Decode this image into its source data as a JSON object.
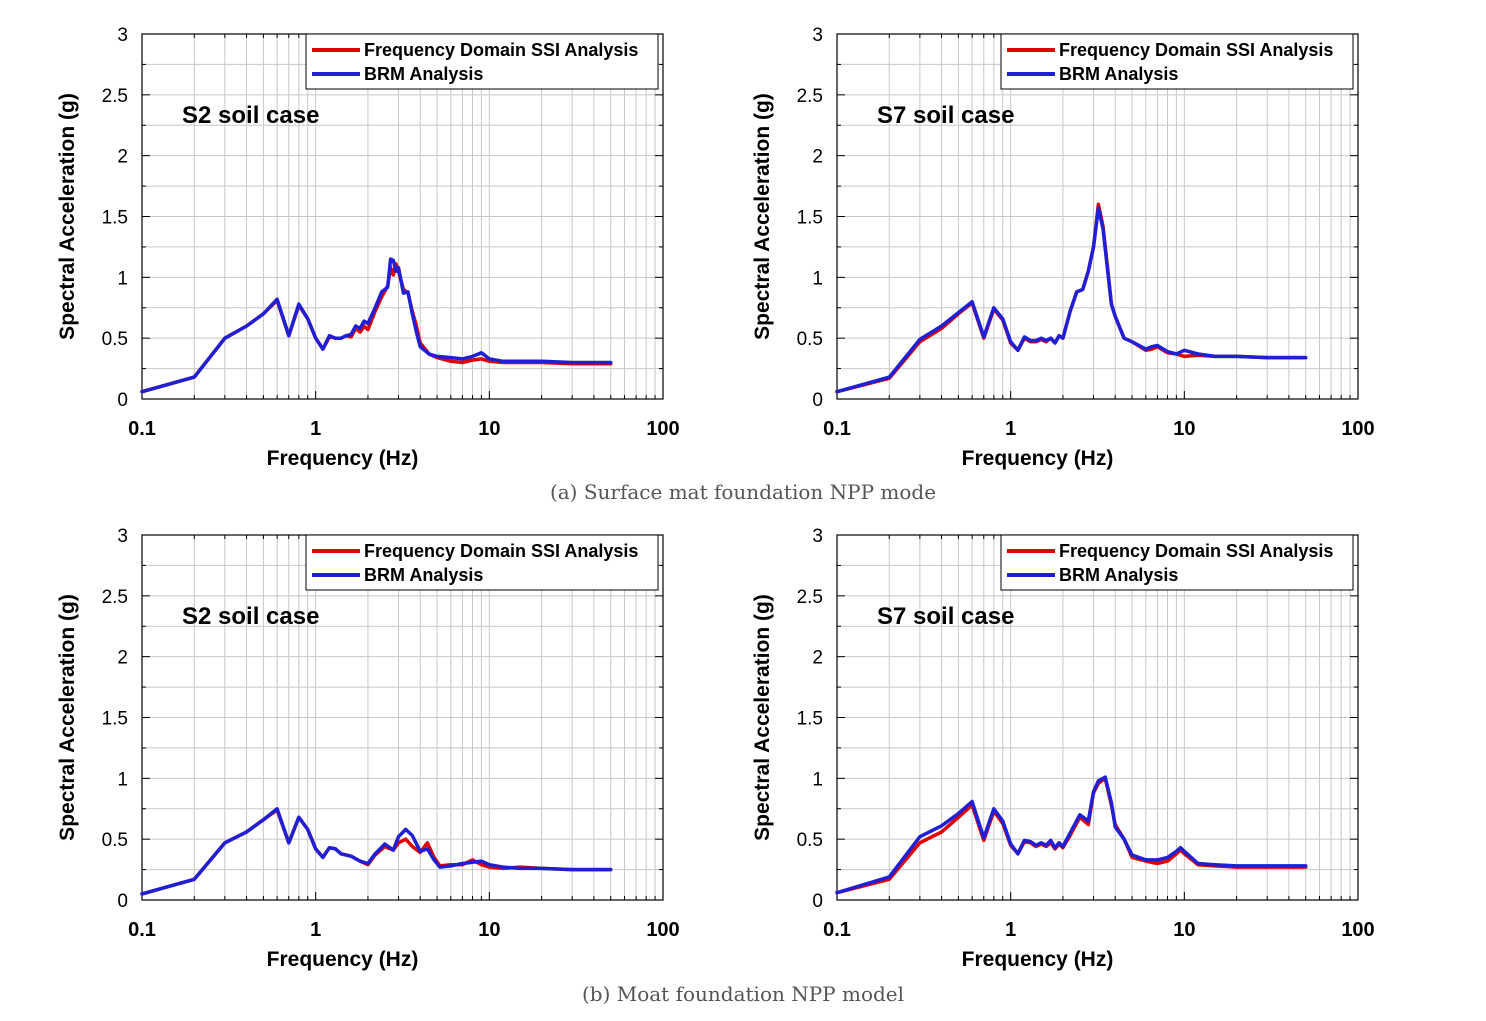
{
  "figure": {
    "caption_a": "(a) Surface mat foundation NPP mode",
    "caption_b": "(b) Moat foundation NPP model"
  },
  "colors": {
    "fd_series": "#e00000",
    "brm_series": "#1f1fd6",
    "grid": "#c8c8c8",
    "axis": "#000000"
  },
  "chart_data": [
    {
      "id": "a-s2",
      "type": "line",
      "case_label": "S2 soil case",
      "xlabel": "Frequency (Hz)",
      "ylabel": "Spectral Acceleration (g)",
      "xscale": "log",
      "xlim": [
        0.1,
        100
      ],
      "ylim": [
        0,
        3
      ],
      "xticks": [
        "0.1",
        "1",
        "10",
        "100"
      ],
      "yticks": [
        "0",
        "0.5",
        "1",
        "1.5",
        "2",
        "2.5",
        "3"
      ],
      "legend": [
        "Frequency Domain SSI Analysis",
        "BRM Analysis"
      ],
      "legend_position": "top-right",
      "series": [
        {
          "name": "Frequency Domain SSI Analysis",
          "x": [
            0.1,
            0.2,
            0.3,
            0.4,
            0.5,
            0.6,
            0.7,
            0.8,
            0.9,
            1.0,
            1.1,
            1.2,
            1.3,
            1.4,
            1.5,
            1.6,
            1.7,
            1.8,
            1.9,
            2.0,
            2.2,
            2.4,
            2.6,
            2.7,
            2.8,
            2.9,
            3.0,
            3.2,
            3.4,
            3.6,
            3.8,
            4.0,
            4.5,
            5,
            6,
            7,
            8,
            9,
            10,
            12,
            15,
            20,
            30,
            50
          ],
          "y": [
            0.06,
            0.18,
            0.5,
            0.6,
            0.7,
            0.81,
            0.52,
            0.77,
            0.66,
            0.5,
            0.41,
            0.51,
            0.5,
            0.5,
            0.52,
            0.51,
            0.58,
            0.55,
            0.6,
            0.57,
            0.72,
            0.84,
            0.93,
            1.08,
            1.02,
            1.11,
            1.05,
            0.9,
            0.87,
            0.72,
            0.6,
            0.46,
            0.37,
            0.34,
            0.31,
            0.3,
            0.32,
            0.33,
            0.31,
            0.3,
            0.3,
            0.3,
            0.29,
            0.29
          ]
        },
        {
          "name": "BRM Analysis",
          "x": [
            0.1,
            0.2,
            0.3,
            0.4,
            0.5,
            0.6,
            0.7,
            0.8,
            0.9,
            1.0,
            1.1,
            1.2,
            1.3,
            1.4,
            1.5,
            1.6,
            1.7,
            1.8,
            1.9,
            2.0,
            2.2,
            2.4,
            2.6,
            2.7,
            2.8,
            2.9,
            3.0,
            3.2,
            3.4,
            3.6,
            3.8,
            4.0,
            4.5,
            5,
            6,
            7,
            8,
            9,
            10,
            12,
            15,
            20,
            30,
            50
          ],
          "y": [
            0.06,
            0.18,
            0.5,
            0.6,
            0.7,
            0.82,
            0.52,
            0.78,
            0.66,
            0.5,
            0.41,
            0.52,
            0.5,
            0.5,
            0.52,
            0.53,
            0.6,
            0.58,
            0.64,
            0.62,
            0.75,
            0.88,
            0.92,
            1.15,
            1.14,
            1.05,
            1.08,
            0.87,
            0.88,
            0.7,
            0.55,
            0.43,
            0.37,
            0.35,
            0.34,
            0.33,
            0.35,
            0.38,
            0.33,
            0.31,
            0.31,
            0.31,
            0.3,
            0.3
          ]
        }
      ]
    },
    {
      "id": "a-s7",
      "type": "line",
      "case_label": "S7 soil case",
      "xlabel": "Frequency (Hz)",
      "ylabel": "Spectral Acceleration (g)",
      "xscale": "log",
      "xlim": [
        0.1,
        100
      ],
      "ylim": [
        0,
        3
      ],
      "xticks": [
        "0.1",
        "1",
        "10",
        "100"
      ],
      "yticks": [
        "0",
        "0.5",
        "1",
        "1.5",
        "2",
        "2.5",
        "3"
      ],
      "legend": [
        "Frequency Domain SSI Analysis",
        "BRM Analysis"
      ],
      "legend_position": "top-right",
      "series": [
        {
          "name": "Frequency Domain SSI Analysis",
          "x": [
            0.1,
            0.2,
            0.3,
            0.4,
            0.5,
            0.6,
            0.7,
            0.8,
            0.9,
            1.0,
            1.1,
            1.2,
            1.3,
            1.4,
            1.5,
            1.6,
            1.7,
            1.8,
            1.9,
            2.0,
            2.2,
            2.4,
            2.6,
            2.8,
            3.0,
            3.2,
            3.4,
            3.6,
            3.8,
            4.0,
            4.5,
            5,
            6,
            6.5,
            7,
            8,
            9,
            10,
            12,
            15,
            20,
            30,
            50
          ],
          "y": [
            0.06,
            0.17,
            0.47,
            0.58,
            0.7,
            0.79,
            0.5,
            0.74,
            0.65,
            0.46,
            0.4,
            0.5,
            0.47,
            0.47,
            0.49,
            0.47,
            0.5,
            0.46,
            0.52,
            0.5,
            0.72,
            0.88,
            0.9,
            1.05,
            1.25,
            1.6,
            1.42,
            1.1,
            0.78,
            0.68,
            0.5,
            0.47,
            0.4,
            0.41,
            0.43,
            0.38,
            0.37,
            0.35,
            0.36,
            0.35,
            0.35,
            0.34,
            0.34
          ]
        },
        {
          "name": "BRM Analysis",
          "x": [
            0.1,
            0.2,
            0.3,
            0.4,
            0.5,
            0.6,
            0.7,
            0.8,
            0.9,
            1.0,
            1.1,
            1.2,
            1.3,
            1.4,
            1.5,
            1.6,
            1.7,
            1.8,
            1.9,
            2.0,
            2.2,
            2.4,
            2.6,
            2.8,
            3.0,
            3.2,
            3.4,
            3.6,
            3.8,
            4.0,
            4.5,
            5,
            6,
            6.5,
            7,
            8,
            9,
            10,
            12,
            15,
            20,
            30,
            50
          ],
          "y": [
            0.06,
            0.18,
            0.49,
            0.6,
            0.71,
            0.8,
            0.51,
            0.75,
            0.66,
            0.47,
            0.4,
            0.51,
            0.48,
            0.48,
            0.5,
            0.48,
            0.5,
            0.46,
            0.52,
            0.5,
            0.72,
            0.88,
            0.9,
            1.05,
            1.25,
            1.57,
            1.4,
            1.08,
            0.78,
            0.68,
            0.5,
            0.47,
            0.41,
            0.43,
            0.44,
            0.39,
            0.37,
            0.4,
            0.37,
            0.35,
            0.35,
            0.34,
            0.34
          ]
        }
      ]
    },
    {
      "id": "b-s2",
      "type": "line",
      "case_label": "S2 soil case",
      "xlabel": "Frequency (Hz)",
      "ylabel": "Spectral Acceleration (g)",
      "xscale": "log",
      "xlim": [
        0.1,
        100
      ],
      "ylim": [
        0,
        3
      ],
      "xticks": [
        "0.1",
        "1",
        "10",
        "100"
      ],
      "yticks": [
        "0",
        "0.5",
        "1",
        "1.5",
        "2",
        "2.5",
        "3"
      ],
      "legend": [
        "Frequency Domain SSI Analysis",
        "BRM Analysis"
      ],
      "legend_position": "top-right",
      "series": [
        {
          "name": "Frequency Domain SSI Analysis",
          "x": [
            0.1,
            0.2,
            0.3,
            0.4,
            0.5,
            0.6,
            0.7,
            0.8,
            0.9,
            1.0,
            1.1,
            1.2,
            1.3,
            1.4,
            1.6,
            1.8,
            2.0,
            2.2,
            2.5,
            2.8,
            3.0,
            3.3,
            3.6,
            4.0,
            4.4,
            4.8,
            5.2,
            6,
            7,
            8,
            9,
            10,
            12,
            15,
            20,
            30,
            50
          ],
          "y": [
            0.05,
            0.17,
            0.47,
            0.56,
            0.66,
            0.74,
            0.47,
            0.68,
            0.58,
            0.42,
            0.35,
            0.43,
            0.42,
            0.38,
            0.36,
            0.32,
            0.29,
            0.37,
            0.44,
            0.41,
            0.47,
            0.5,
            0.44,
            0.39,
            0.47,
            0.35,
            0.28,
            0.29,
            0.29,
            0.33,
            0.29,
            0.27,
            0.26,
            0.27,
            0.26,
            0.25,
            0.25
          ]
        },
        {
          "name": "BRM Analysis",
          "x": [
            0.1,
            0.2,
            0.3,
            0.4,
            0.5,
            0.6,
            0.7,
            0.8,
            0.9,
            1.0,
            1.1,
            1.2,
            1.3,
            1.4,
            1.6,
            1.8,
            2.0,
            2.2,
            2.5,
            2.8,
            3.0,
            3.3,
            3.6,
            4.0,
            4.4,
            4.8,
            5.2,
            6,
            7,
            8,
            9,
            10,
            12,
            15,
            20,
            30,
            50
          ],
          "y": [
            0.05,
            0.17,
            0.47,
            0.56,
            0.66,
            0.75,
            0.47,
            0.68,
            0.58,
            0.42,
            0.35,
            0.43,
            0.42,
            0.38,
            0.36,
            0.32,
            0.3,
            0.38,
            0.46,
            0.41,
            0.52,
            0.58,
            0.53,
            0.4,
            0.42,
            0.33,
            0.27,
            0.28,
            0.3,
            0.31,
            0.32,
            0.29,
            0.27,
            0.26,
            0.26,
            0.25,
            0.25
          ]
        }
      ]
    },
    {
      "id": "b-s7",
      "type": "line",
      "case_label": "S7 soil case",
      "xlabel": "Frequency (Hz)",
      "ylabel": "Spectral Acceleration (g)",
      "xscale": "log",
      "xlim": [
        0.1,
        100
      ],
      "ylim": [
        0,
        3
      ],
      "xticks": [
        "0.1",
        "1",
        "10",
        "100"
      ],
      "yticks": [
        "0",
        "0.5",
        "1",
        "1.5",
        "2",
        "2.5",
        "3"
      ],
      "legend": [
        "Frequency Domain SSI Analysis",
        "BRM Analysis"
      ],
      "legend_position": "top-right",
      "series": [
        {
          "name": "Frequency Domain SSI Analysis",
          "x": [
            0.1,
            0.2,
            0.3,
            0.4,
            0.5,
            0.6,
            0.7,
            0.8,
            0.9,
            1.0,
            1.1,
            1.2,
            1.3,
            1.4,
            1.5,
            1.6,
            1.7,
            1.8,
            1.9,
            2.0,
            2.2,
            2.5,
            2.8,
            3.0,
            3.2,
            3.5,
            3.8,
            4.0,
            4.5,
            5,
            6,
            7,
            8,
            9,
            9.5,
            10,
            12,
            15,
            20,
            30,
            50
          ],
          "y": [
            0.06,
            0.17,
            0.47,
            0.56,
            0.68,
            0.78,
            0.49,
            0.73,
            0.63,
            0.45,
            0.38,
            0.48,
            0.47,
            0.44,
            0.46,
            0.44,
            0.47,
            0.42,
            0.46,
            0.43,
            0.53,
            0.68,
            0.62,
            0.88,
            0.96,
            1.0,
            0.78,
            0.62,
            0.5,
            0.35,
            0.32,
            0.3,
            0.32,
            0.38,
            0.41,
            0.38,
            0.29,
            0.28,
            0.27,
            0.27,
            0.27
          ]
        },
        {
          "name": "BRM Analysis",
          "x": [
            0.1,
            0.2,
            0.3,
            0.4,
            0.5,
            0.6,
            0.7,
            0.8,
            0.9,
            1.0,
            1.1,
            1.2,
            1.3,
            1.4,
            1.5,
            1.6,
            1.7,
            1.8,
            1.9,
            2.0,
            2.2,
            2.5,
            2.8,
            3.0,
            3.2,
            3.5,
            3.8,
            4.0,
            4.5,
            5,
            6,
            7,
            8,
            9,
            9.5,
            10,
            12,
            15,
            20,
            30,
            50
          ],
          "y": [
            0.06,
            0.19,
            0.52,
            0.61,
            0.71,
            0.81,
            0.51,
            0.75,
            0.65,
            0.46,
            0.38,
            0.49,
            0.48,
            0.45,
            0.47,
            0.45,
            0.49,
            0.43,
            0.47,
            0.44,
            0.55,
            0.7,
            0.65,
            0.89,
            0.98,
            1.01,
            0.8,
            0.6,
            0.5,
            0.37,
            0.33,
            0.33,
            0.35,
            0.4,
            0.43,
            0.4,
            0.3,
            0.29,
            0.28,
            0.28,
            0.28
          ]
        }
      ]
    }
  ]
}
